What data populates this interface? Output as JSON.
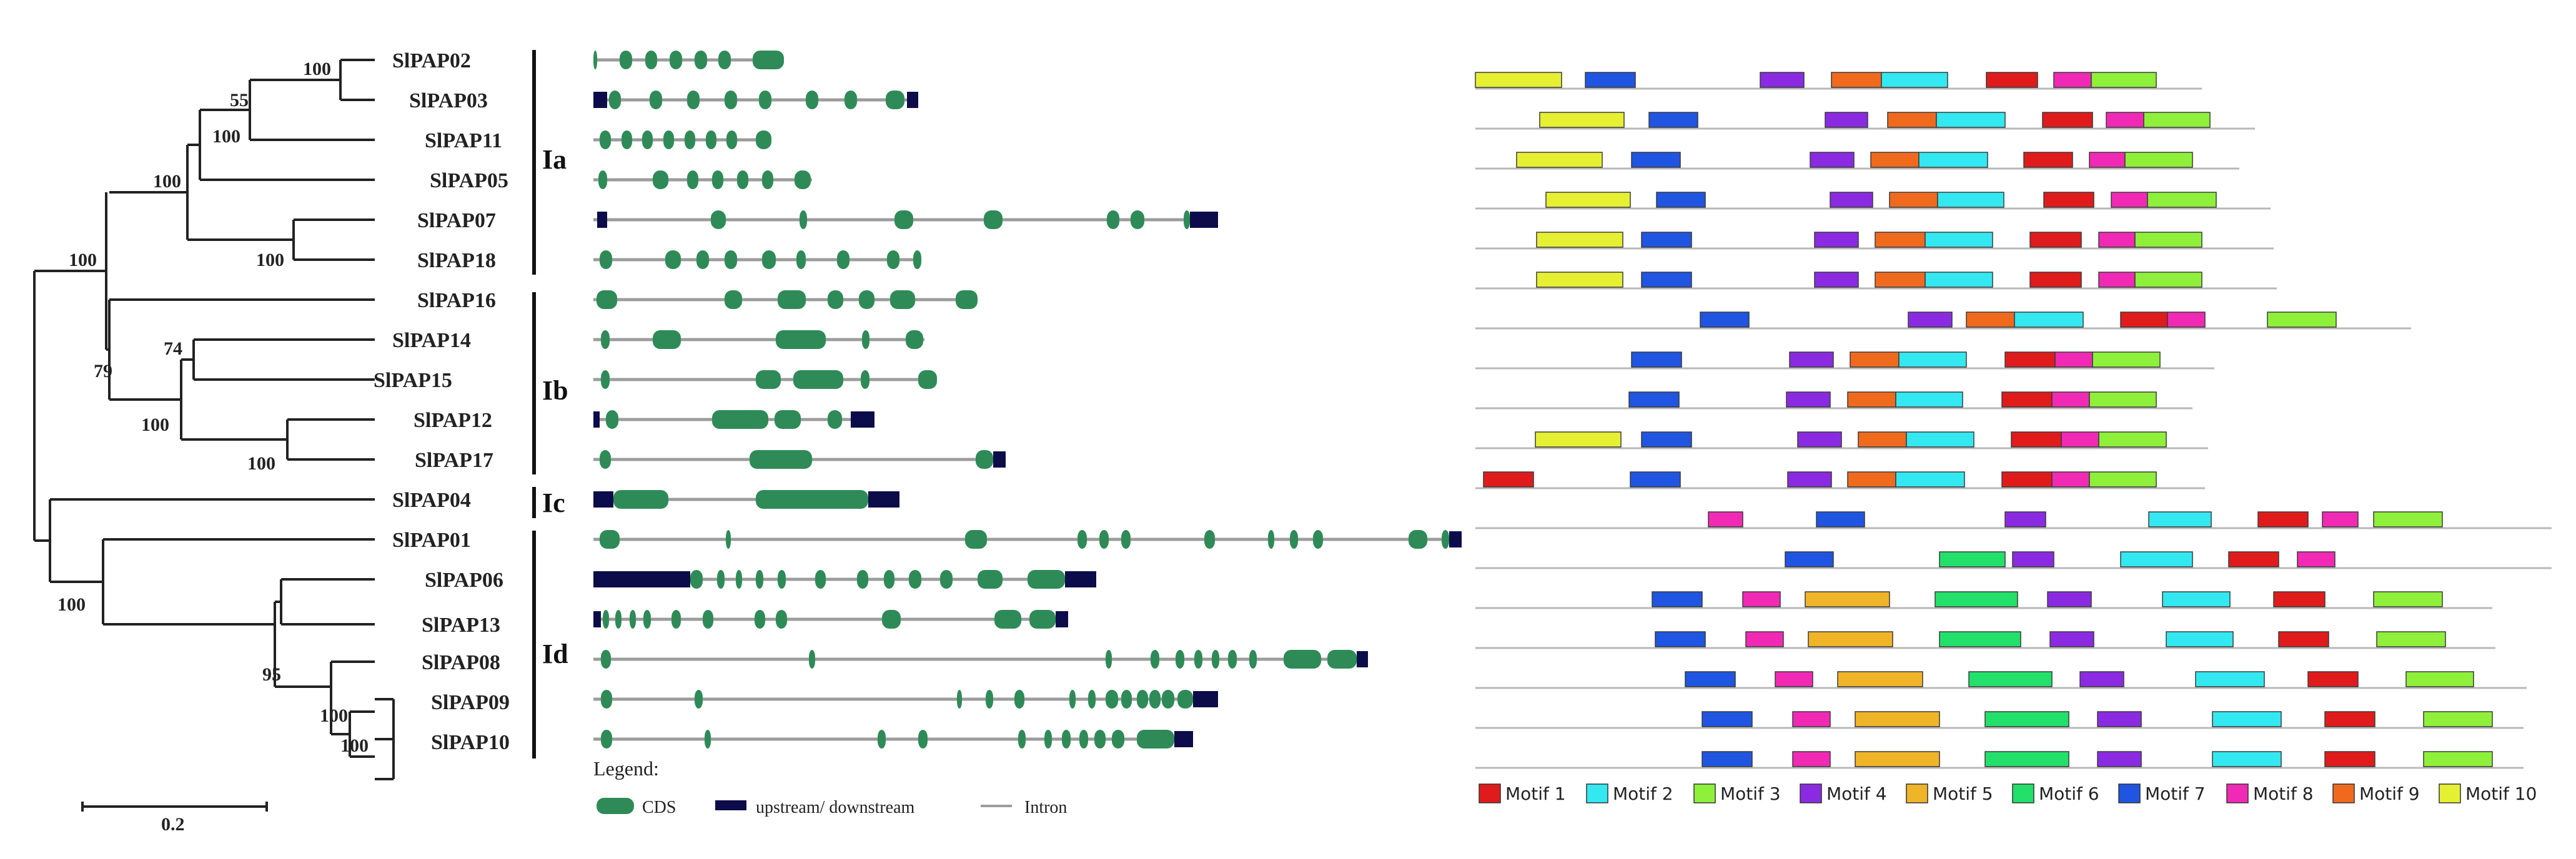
{
  "tree": {
    "genes": [
      "SlPAP02",
      "SlPAP03",
      "SlPAP11",
      "SlPAP05",
      "SlPAP07",
      "SlPAP18",
      "SlPAP16",
      "SlPAP14",
      "SlPAP15",
      "SlPAP12",
      "SlPAP17",
      "SlPAP04",
      "SlPAP01",
      "SlPAP06",
      "SlPAP13",
      "SlPAP08",
      "SlPAP09",
      "SlPAP10"
    ],
    "bootstrap": [
      "100",
      "55",
      "100",
      "100",
      "100",
      "100",
      "74",
      "79",
      "100",
      "100",
      "100",
      "95",
      "100",
      "100"
    ],
    "groups": [
      "Ia",
      "Ib",
      "Ic",
      "Id"
    ],
    "scale_label": "0.2"
  },
  "gene_structure": {
    "legend_title": "Legend:",
    "legend": [
      "CDS",
      "upstream/ downstream",
      "Intron"
    ]
  },
  "motifs": {
    "legend": [
      {
        "label": "Motif 1",
        "color": "#e01b1b"
      },
      {
        "label": "Motif 2",
        "color": "#33e8f0"
      },
      {
        "label": "Motif 3",
        "color": "#8ef03a"
      },
      {
        "label": "Motif 4",
        "color": "#8a2be2"
      },
      {
        "label": "Motif 5",
        "color": "#f0b428"
      },
      {
        "label": "Motif 6",
        "color": "#22e06a"
      },
      {
        "label": "Motif 7",
        "color": "#1f55e0"
      },
      {
        "label": "Motif 8",
        "color": "#f02ab4"
      },
      {
        "label": "Motif 9",
        "color": "#f06a1e"
      },
      {
        "label": "Motif 10",
        "color": "#e6f032"
      }
    ]
  },
  "colors": {
    "cds": "#2e8b57",
    "utr": "#0c0c4a",
    "intron": "#9c9c9c",
    "tree": "#222222"
  }
}
